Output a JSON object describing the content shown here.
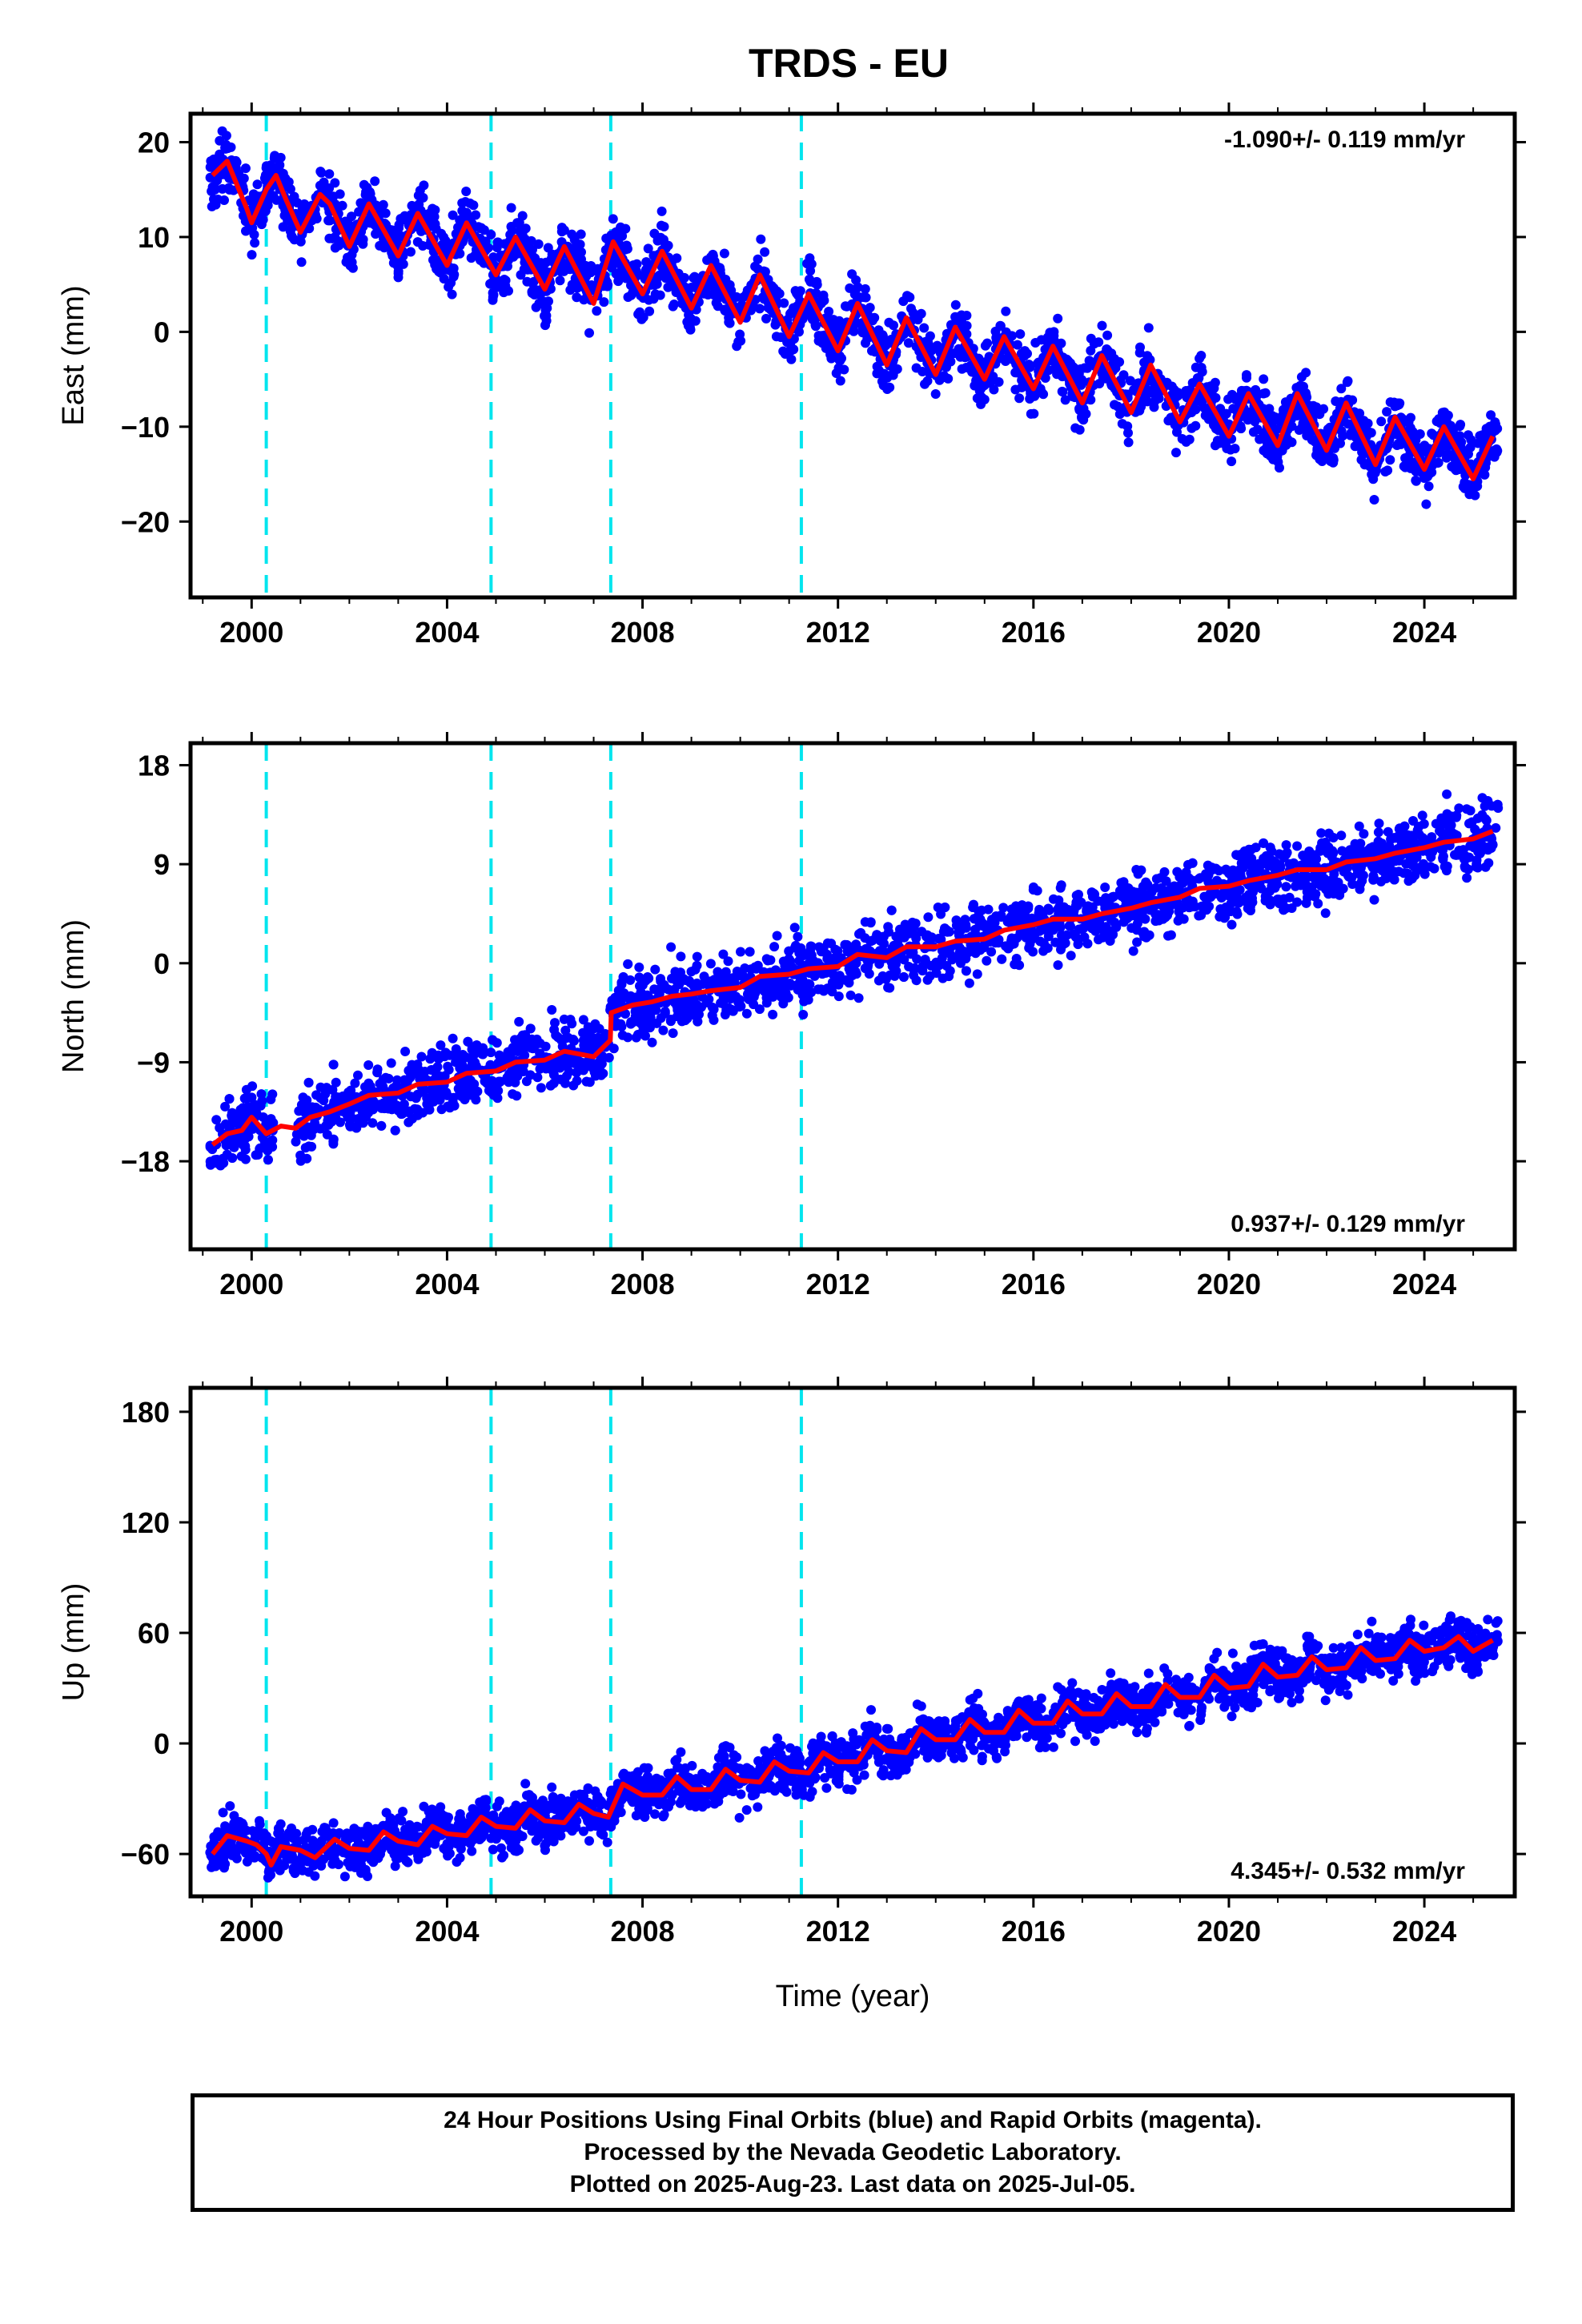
{
  "chart_data": {
    "title": "TRDS - EU",
    "type": "scatter",
    "x_ticks": [
      2000,
      2004,
      2008,
      2012,
      2016,
      2020,
      2024
    ],
    "xlim": [
      1998.75,
      2025.85
    ],
    "xlabel": "Time (year)",
    "data_start": 1999.15,
    "data_end": 2025.51,
    "offset_epochs": [
      2000.3,
      2004.9,
      2007.35,
      2011.25
    ],
    "colors": {
      "points": "#0000ff",
      "model": "#ff0000",
      "offsets": "#00e5ee",
      "frame": "#000000"
    },
    "legend_text": [
      "24 Hour Positions Using Final Orbits (blue) and Rapid Orbits (magenta).",
      "Processed by the Nevada Geodetic Laboratory.",
      "Plotted on 2025-Aug-23. Last data on 2025-Jul-05."
    ],
    "panels": [
      {
        "name": "east",
        "ylabel": "East (mm)",
        "ylim": [
          -28,
          23
        ],
        "yticks": [
          20,
          10,
          0,
          -10,
          -20
        ],
        "rate_label": "-1.090+/- 0.119 mm/yr",
        "rate_position": "top-right",
        "model_points": [
          [
            1999.2,
            16.5
          ],
          [
            1999.5,
            18
          ],
          [
            1999.9,
            13
          ],
          [
            2000.0,
            11.5
          ],
          [
            2000.3,
            15
          ],
          [
            2000.5,
            16.5
          ],
          [
            2000.7,
            14
          ],
          [
            2001.0,
            10.5
          ],
          [
            2001.4,
            14.5
          ],
          [
            2001.6,
            13.5
          ],
          [
            2002.0,
            9
          ],
          [
            2002.4,
            13.5
          ],
          [
            2003.0,
            8
          ],
          [
            2003.4,
            12.5
          ],
          [
            2004.0,
            7
          ],
          [
            2004.4,
            11.5
          ],
          [
            2005.0,
            6
          ],
          [
            2005.4,
            10
          ],
          [
            2006.0,
            4.5
          ],
          [
            2006.4,
            9
          ],
          [
            2007.0,
            3
          ],
          [
            2007.4,
            9.5
          ],
          [
            2008.0,
            4
          ],
          [
            2008.4,
            8.5
          ],
          [
            2009.0,
            2.5
          ],
          [
            2009.4,
            7
          ],
          [
            2010.0,
            1
          ],
          [
            2010.4,
            6
          ],
          [
            2011.0,
            -0.5
          ],
          [
            2011.4,
            4
          ],
          [
            2012.0,
            -2
          ],
          [
            2012.4,
            3
          ],
          [
            2013.0,
            -3.5
          ],
          [
            2013.4,
            1.5
          ],
          [
            2014.0,
            -4.5
          ],
          [
            2014.4,
            0.5
          ],
          [
            2015.0,
            -5
          ],
          [
            2015.4,
            -0.5
          ],
          [
            2016.0,
            -6
          ],
          [
            2016.4,
            -1.5
          ],
          [
            2017.0,
            -7.5
          ],
          [
            2017.4,
            -2.5
          ],
          [
            2018.0,
            -8.5
          ],
          [
            2018.4,
            -3.5
          ],
          [
            2019.0,
            -9.5
          ],
          [
            2019.4,
            -5.5
          ],
          [
            2020.0,
            -11
          ],
          [
            2020.4,
            -6.5
          ],
          [
            2021.0,
            -12
          ],
          [
            2021.4,
            -6.5
          ],
          [
            2022.0,
            -12.5
          ],
          [
            2022.4,
            -7.5
          ],
          [
            2023.0,
            -14
          ],
          [
            2023.4,
            -9
          ],
          [
            2024.0,
            -14.5
          ],
          [
            2024.4,
            -10
          ],
          [
            2025.0,
            -15.5
          ],
          [
            2025.4,
            -11
          ]
        ]
      },
      {
        "name": "north",
        "ylabel": "North (mm)",
        "ylim": [
          -26,
          20
        ],
        "yticks": [
          18,
          9,
          0,
          -9,
          -18
        ],
        "rate_label": "0.937+/- 0.129 mm/yr",
        "rate_position": "bottom-right",
        "model_points": [
          [
            1999.2,
            -16.5
          ],
          [
            1999.5,
            -15.5
          ],
          [
            1999.8,
            -15.2
          ],
          [
            2000.0,
            -14
          ],
          [
            2000.3,
            -15.5
          ],
          [
            2000.6,
            -14.8
          ],
          [
            2000.9,
            -15
          ],
          [
            2001.2,
            -14
          ],
          [
            2001.6,
            -13.5
          ],
          [
            2002.0,
            -12.8
          ],
          [
            2002.4,
            -12
          ],
          [
            2003.0,
            -11.8
          ],
          [
            2003.4,
            -11
          ],
          [
            2004.0,
            -10.8
          ],
          [
            2004.4,
            -10
          ],
          [
            2005.0,
            -9.8
          ],
          [
            2005.4,
            -9
          ],
          [
            2006.0,
            -8.8
          ],
          [
            2006.4,
            -8
          ],
          [
            2007.0,
            -8.5
          ],
          [
            2007.34,
            -7
          ],
          [
            2007.36,
            -4.5
          ],
          [
            2007.8,
            -3.8
          ],
          [
            2008.2,
            -3.5
          ],
          [
            2008.6,
            -3
          ],
          [
            2009.0,
            -2.8
          ],
          [
            2009.4,
            -2.5
          ],
          [
            2010.0,
            -2.2
          ],
          [
            2010.4,
            -1.2
          ],
          [
            2011.0,
            -1
          ],
          [
            2011.4,
            -0.5
          ],
          [
            2012.0,
            -0.3
          ],
          [
            2012.4,
            0.8
          ],
          [
            2013.0,
            0.5
          ],
          [
            2013.4,
            1.5
          ],
          [
            2014.0,
            1.5
          ],
          [
            2014.4,
            2
          ],
          [
            2015.0,
            2.2
          ],
          [
            2015.4,
            3
          ],
          [
            2016.0,
            3.5
          ],
          [
            2016.4,
            4
          ],
          [
            2017.0,
            4
          ],
          [
            2017.4,
            4.5
          ],
          [
            2018.0,
            5
          ],
          [
            2018.4,
            5.5
          ],
          [
            2019.0,
            6
          ],
          [
            2019.4,
            6.8
          ],
          [
            2020.0,
            7
          ],
          [
            2020.4,
            7.5
          ],
          [
            2021.0,
            8
          ],
          [
            2021.4,
            8.5
          ],
          [
            2022.0,
            8.5
          ],
          [
            2022.4,
            9.2
          ],
          [
            2023.0,
            9.5
          ],
          [
            2023.4,
            10
          ],
          [
            2024.0,
            10.5
          ],
          [
            2024.4,
            11
          ],
          [
            2025.0,
            11.3
          ],
          [
            2025.4,
            12
          ]
        ]
      },
      {
        "name": "up",
        "ylabel": "Up (mm)",
        "ylim": [
          -83,
          193
        ],
        "yticks": [
          180,
          120,
          60,
          0,
          -60
        ],
        "rate_label": "4.345+/- 0.532 mm/yr",
        "rate_position": "bottom-right",
        "model_points": [
          [
            1999.2,
            -60
          ],
          [
            1999.5,
            -50
          ],
          [
            1999.9,
            -53
          ],
          [
            2000.1,
            -55
          ],
          [
            2000.3,
            -60
          ],
          [
            2000.4,
            -66
          ],
          [
            2000.6,
            -56
          ],
          [
            2001.0,
            -58
          ],
          [
            2001.3,
            -62
          ],
          [
            2001.7,
            -52
          ],
          [
            2002.0,
            -57
          ],
          [
            2002.4,
            -58
          ],
          [
            2002.7,
            -48
          ],
          [
            2003.0,
            -53
          ],
          [
            2003.4,
            -55
          ],
          [
            2003.7,
            -45
          ],
          [
            2004.0,
            -49
          ],
          [
            2004.4,
            -50
          ],
          [
            2004.7,
            -40
          ],
          [
            2005.0,
            -45
          ],
          [
            2005.4,
            -46
          ],
          [
            2005.7,
            -36
          ],
          [
            2006.0,
            -42
          ],
          [
            2006.4,
            -43
          ],
          [
            2006.7,
            -33
          ],
          [
            2007.0,
            -38
          ],
          [
            2007.3,
            -40
          ],
          [
            2007.6,
            -22
          ],
          [
            2008.0,
            -28
          ],
          [
            2008.4,
            -28
          ],
          [
            2008.7,
            -18
          ],
          [
            2009.0,
            -25
          ],
          [
            2009.4,
            -25
          ],
          [
            2009.7,
            -14
          ],
          [
            2010.0,
            -20
          ],
          [
            2010.4,
            -21
          ],
          [
            2010.7,
            -10
          ],
          [
            2011.0,
            -15
          ],
          [
            2011.4,
            -16
          ],
          [
            2011.7,
            -5
          ],
          [
            2012.0,
            -10
          ],
          [
            2012.4,
            -10
          ],
          [
            2012.7,
            2
          ],
          [
            2013.0,
            -4
          ],
          [
            2013.4,
            -5
          ],
          [
            2013.7,
            8
          ],
          [
            2014.0,
            2
          ],
          [
            2014.4,
            2
          ],
          [
            2014.7,
            13
          ],
          [
            2015.0,
            6
          ],
          [
            2015.4,
            6
          ],
          [
            2015.7,
            18
          ],
          [
            2016.0,
            11
          ],
          [
            2016.4,
            11
          ],
          [
            2016.7,
            23
          ],
          [
            2017.0,
            16
          ],
          [
            2017.4,
            16
          ],
          [
            2017.7,
            27
          ],
          [
            2018.0,
            20
          ],
          [
            2018.4,
            20
          ],
          [
            2018.7,
            32
          ],
          [
            2019.0,
            25
          ],
          [
            2019.4,
            25
          ],
          [
            2019.7,
            37
          ],
          [
            2020.0,
            30
          ],
          [
            2020.4,
            31
          ],
          [
            2020.7,
            43
          ],
          [
            2021.0,
            36
          ],
          [
            2021.4,
            37
          ],
          [
            2021.7,
            47
          ],
          [
            2022.0,
            40
          ],
          [
            2022.4,
            41
          ],
          [
            2022.7,
            52
          ],
          [
            2023.0,
            45
          ],
          [
            2023.4,
            46
          ],
          [
            2023.7,
            56
          ],
          [
            2024.0,
            50
          ],
          [
            2024.4,
            52
          ],
          [
            2024.7,
            58
          ],
          [
            2025.0,
            50
          ],
          [
            2025.4,
            56
          ]
        ]
      }
    ]
  }
}
